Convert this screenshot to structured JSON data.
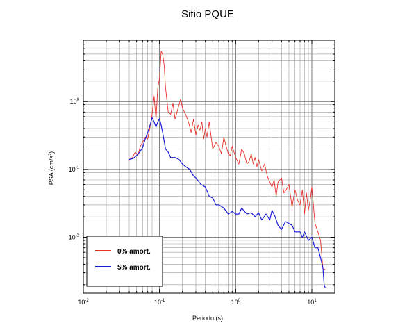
{
  "chart_data": {
    "type": "line",
    "title": "Sitio PQUE",
    "xlabel": "Periodo (s)",
    "ylabel": "PSA (cm/s²)",
    "ylabel_parts": {
      "main": "PSA (cm/s",
      "sup": "2",
      "end": ")"
    },
    "x_scale": "log",
    "y_scale": "log",
    "xlim": [
      0.01,
      20
    ],
    "ylim": [
      0.0015,
      8
    ],
    "grid": true,
    "legend_position": "bottom-left",
    "x_ticks": [
      {
        "value": 0.01,
        "base": "10",
        "exp": "-2"
      },
      {
        "value": 0.1,
        "base": "10",
        "exp": "-1"
      },
      {
        "value": 1,
        "base": "10",
        "exp": "0"
      },
      {
        "value": 10,
        "base": "10",
        "exp": "1"
      }
    ],
    "y_ticks": [
      {
        "value": 0.01,
        "base": "10",
        "exp": "-2"
      },
      {
        "value": 0.1,
        "base": "10",
        "exp": "-1"
      },
      {
        "value": 1,
        "base": "10",
        "exp": "0"
      }
    ],
    "series": [
      {
        "name": "0% amort.",
        "color": "#e8302a",
        "x": [
          0.04,
          0.044,
          0.048,
          0.052,
          0.056,
          0.06,
          0.065,
          0.07,
          0.075,
          0.08,
          0.085,
          0.09,
          0.095,
          0.1,
          0.105,
          0.11,
          0.115,
          0.12,
          0.13,
          0.14,
          0.15,
          0.16,
          0.17,
          0.18,
          0.19,
          0.2,
          0.22,
          0.24,
          0.26,
          0.28,
          0.3,
          0.32,
          0.34,
          0.36,
          0.38,
          0.4,
          0.42,
          0.45,
          0.48,
          0.5,
          0.55,
          0.6,
          0.65,
          0.7,
          0.75,
          0.8,
          0.85,
          0.9,
          1.0,
          1.1,
          1.2,
          1.3,
          1.4,
          1.5,
          1.6,
          1.7,
          1.8,
          1.9,
          2.0,
          2.2,
          2.4,
          2.6,
          2.8,
          3.0,
          3.2,
          3.4,
          3.6,
          3.8,
          4.0,
          4.3,
          4.6,
          5.0,
          5.5,
          6.0,
          6.5,
          7.0,
          7.5,
          8.0,
          8.5,
          9.0,
          9.5,
          10.0,
          11.0,
          12.0,
          13.0,
          14.0,
          15.0
        ],
        "y": [
          0.14,
          0.15,
          0.18,
          0.16,
          0.22,
          0.25,
          0.3,
          0.28,
          0.42,
          0.65,
          1.2,
          0.55,
          1.6,
          2.2,
          5.5,
          5.0,
          3.5,
          1.6,
          0.7,
          0.65,
          0.95,
          0.55,
          0.7,
          0.9,
          1.1,
          0.8,
          0.65,
          0.5,
          0.35,
          0.55,
          0.32,
          0.45,
          0.38,
          0.5,
          0.28,
          0.4,
          0.3,
          0.5,
          0.28,
          0.2,
          0.25,
          0.22,
          0.17,
          0.3,
          0.22,
          0.17,
          0.16,
          0.22,
          0.15,
          0.12,
          0.2,
          0.17,
          0.12,
          0.13,
          0.17,
          0.12,
          0.15,
          0.11,
          0.14,
          0.095,
          0.12,
          0.08,
          0.065,
          0.055,
          0.07,
          0.04,
          0.065,
          0.07,
          0.075,
          0.045,
          0.05,
          0.06,
          0.028,
          0.05,
          0.035,
          0.03,
          0.05,
          0.022,
          0.045,
          0.025,
          0.035,
          0.055,
          0.016,
          0.012,
          0.009,
          0.0034,
          0.0034
        ]
      },
      {
        "name": "5% amort.",
        "color": "#1a1ad6",
        "x": [
          0.04,
          0.045,
          0.05,
          0.055,
          0.06,
          0.065,
          0.07,
          0.075,
          0.08,
          0.085,
          0.09,
          0.095,
          0.1,
          0.105,
          0.11,
          0.12,
          0.13,
          0.14,
          0.16,
          0.18,
          0.2,
          0.22,
          0.25,
          0.28,
          0.3,
          0.35,
          0.4,
          0.45,
          0.5,
          0.55,
          0.6,
          0.7,
          0.8,
          0.9,
          1.0,
          1.1,
          1.2,
          1.4,
          1.6,
          1.8,
          2.0,
          2.2,
          2.5,
          2.8,
          3.0,
          3.3,
          3.6,
          4.0,
          4.5,
          5.0,
          5.5,
          6.0,
          6.5,
          7.0,
          7.5,
          8.0,
          9.0,
          10.0,
          11.0,
          12.0,
          13.0,
          14.0,
          14.5,
          15.0
        ],
        "y": [
          0.14,
          0.145,
          0.16,
          0.18,
          0.21,
          0.28,
          0.35,
          0.45,
          0.58,
          0.5,
          0.42,
          0.5,
          0.56,
          0.45,
          0.35,
          0.2,
          0.18,
          0.15,
          0.15,
          0.14,
          0.12,
          0.11,
          0.1,
          0.08,
          0.075,
          0.06,
          0.055,
          0.04,
          0.038,
          0.03,
          0.03,
          0.027,
          0.022,
          0.024,
          0.022,
          0.022,
          0.027,
          0.022,
          0.023,
          0.02,
          0.023,
          0.018,
          0.022,
          0.018,
          0.025,
          0.02,
          0.015,
          0.013,
          0.017,
          0.016,
          0.015,
          0.012,
          0.012,
          0.012,
          0.01,
          0.012,
          0.009,
          0.01,
          0.007,
          0.007,
          0.005,
          0.0035,
          0.002,
          0.0018
        ]
      }
    ]
  }
}
